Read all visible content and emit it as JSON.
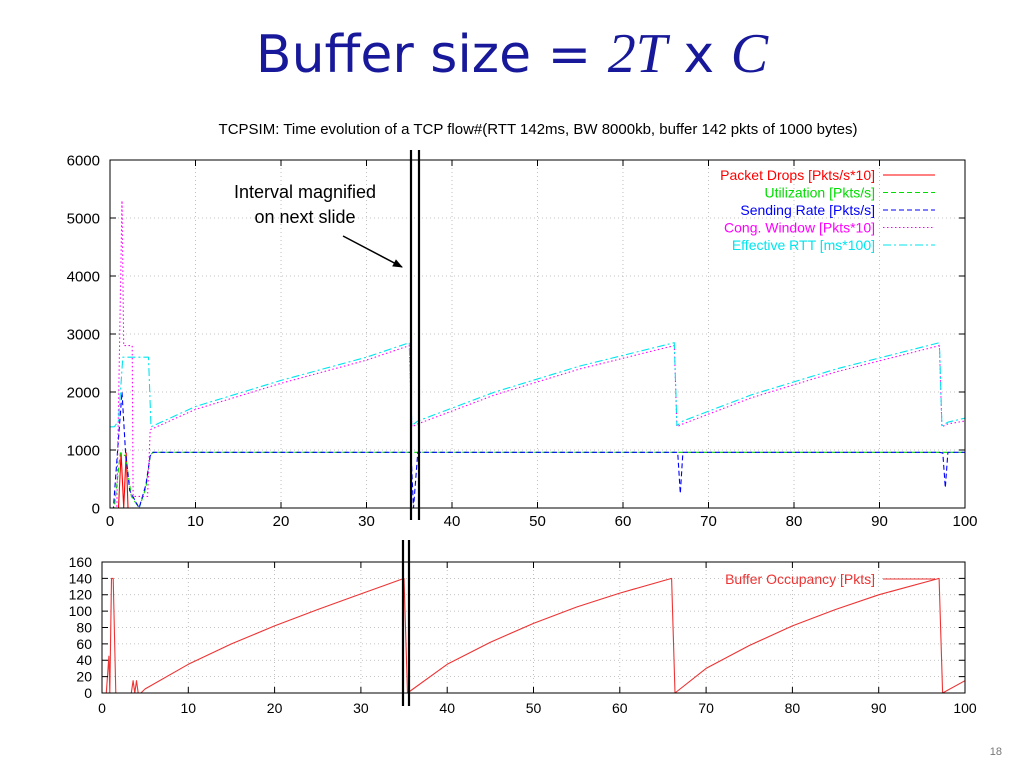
{
  "slide": {
    "title_prefix": "Buffer size = ",
    "title_2T": "2T",
    "title_x": " x ",
    "title_C": "C",
    "page_number": "18"
  },
  "annotation": {
    "line1": "Interval magnified",
    "line2": "on next slide"
  },
  "colors": {
    "title": "#17199a",
    "drops": "#ff0000",
    "utilization": "#00dd00",
    "sending": "#0000ff",
    "cwnd": "#ff00ff",
    "rtt": "#00e5ee",
    "buffer": "#ee3333"
  },
  "chart_data": [
    {
      "type": "line",
      "title": "TCPSIM: Time evolution of a TCP flow#(RTT 142ms, BW 8000kb, buffer 142 pkts of 1000 bytes)",
      "xlim": [
        0,
        100
      ],
      "ylim": [
        0,
        6000
      ],
      "xticks": [
        0,
        10,
        20,
        30,
        40,
        50,
        60,
        70,
        80,
        90,
        100
      ],
      "yticks": [
        0,
        1000,
        2000,
        3000,
        4000,
        5000,
        6000
      ],
      "grid": true,
      "legend_position": "top-right",
      "series": [
        {
          "name": "Packet Drops [Pkts/s*10]",
          "color_key": "drops",
          "dash": "solid",
          "x": [
            0,
            1,
            1.3,
            1.6,
            1.9,
            2.1,
            2.3,
            100
          ],
          "y": [
            0,
            0,
            950,
            0,
            950,
            0,
            0,
            0
          ]
        },
        {
          "name": "Utilization [Pkts/s]",
          "color_key": "utilization",
          "dash": "dashed",
          "x": [
            0,
            0.5,
            1.2,
            1.8,
            2.5,
            3.4,
            4.2,
            4.7,
            5,
            35,
            35.4,
            35.9,
            100
          ],
          "y": [
            0,
            0,
            950,
            900,
            200,
            0,
            350,
            900,
            960,
            960,
            960,
            960,
            960
          ]
        },
        {
          "name": "Sending Rate [Pkts/s]",
          "color_key": "sending",
          "dash": "dashed",
          "x": [
            0,
            0.4,
            1,
            1.4,
            1.8,
            2.3,
            3.4,
            4.2,
            4.7,
            5,
            35,
            35.2,
            35.5,
            36,
            66,
            66.4,
            66.7,
            67,
            97,
            97.4,
            97.7,
            98,
            100
          ],
          "y": [
            0,
            0,
            1200,
            2000,
            1000,
            300,
            0,
            400,
            900,
            960,
            960,
            950,
            0,
            960,
            960,
            960,
            250,
            960,
            960,
            950,
            350,
            960,
            960
          ]
        },
        {
          "name": "Cong. Window [Pkts*10]",
          "color_key": "cwnd",
          "dash": "dotted",
          "x": [
            0,
            0.8,
            1.4,
            1.6,
            1.8,
            2,
            2.6,
            2.7,
            4.4,
            4.7,
            10,
            20,
            30,
            35,
            35.3,
            36,
            45,
            55,
            66,
            66.3,
            67,
            75,
            85,
            97,
            97.3,
            98,
            100
          ],
          "y": [
            0,
            0,
            5300,
            2800,
            2800,
            2800,
            2800,
            200,
            200,
            1350,
            1700,
            2150,
            2550,
            2800,
            1400,
            1450,
            1950,
            2400,
            2800,
            1400,
            1450,
            1900,
            2350,
            2800,
            1400,
            1450,
            1500
          ]
        },
        {
          "name": "Effective RTT [ms*100]",
          "color_key": "rtt",
          "dash": "dashdot",
          "x": [
            0,
            0.5,
            1,
            1.5,
            4.5,
            4.8,
            10,
            20,
            30,
            35,
            35.3,
            36,
            45,
            55,
            66,
            66.3,
            67,
            75,
            85,
            97,
            97.3,
            98,
            100
          ],
          "y": [
            1400,
            1400,
            1500,
            2600,
            2600,
            1400,
            1750,
            2200,
            2600,
            2850,
            1420,
            1500,
            2000,
            2450,
            2850,
            1420,
            1500,
            1950,
            2400,
            2850,
            1420,
            1480,
            1550
          ]
        }
      ]
    },
    {
      "type": "line",
      "xlim": [
        0,
        100
      ],
      "ylim": [
        0,
        160
      ],
      "xticks": [
        0,
        10,
        20,
        30,
        40,
        50,
        60,
        70,
        80,
        90,
        100
      ],
      "yticks": [
        0,
        20,
        40,
        60,
        80,
        100,
        120,
        140,
        160
      ],
      "grid": true,
      "legend_position": "top-right",
      "series": [
        {
          "name": "Buffer Occupancy [Pkts]",
          "color_key": "buffer",
          "dash": "solid",
          "x": [
            0,
            0.5,
            0.8,
            0.9,
            1.1,
            1.3,
            1.6,
            2.1,
            3.4,
            3.6,
            3.8,
            4,
            4.2,
            4.5,
            5,
            10,
            15,
            20,
            25,
            30,
            35,
            35.4,
            40,
            45,
            50,
            55,
            60,
            66,
            66.4,
            70,
            75,
            80,
            85,
            90,
            97,
            97.4,
            100
          ],
          "y": [
            0,
            0,
            45,
            0,
            140,
            140,
            0,
            0,
            0,
            15,
            0,
            15,
            0,
            0,
            5,
            35,
            60,
            82,
            102,
            121,
            140,
            0,
            35,
            62,
            85,
            105,
            122,
            140,
            0,
            30,
            58,
            82,
            102,
            120,
            140,
            0,
            15
          ]
        }
      ]
    }
  ]
}
